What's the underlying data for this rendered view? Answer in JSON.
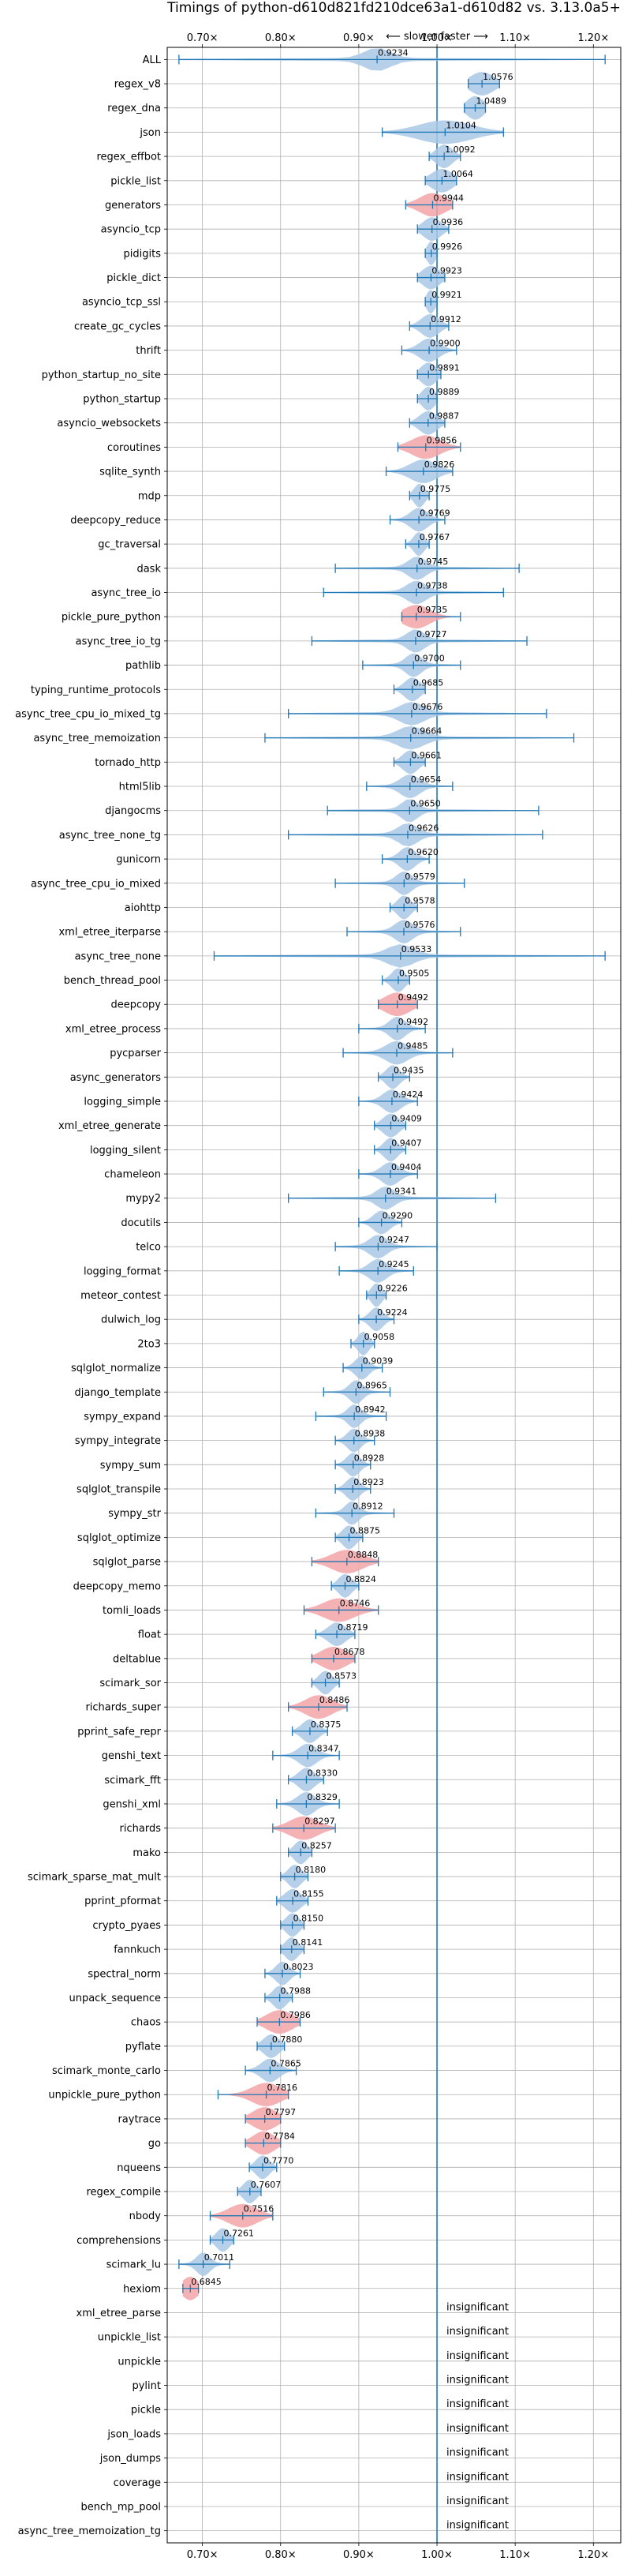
{
  "chart_data": {
    "type": "violin",
    "title": "Timings of python-d610d821fd210dce63a1-d610d82 vs. 3.13.0a5+",
    "legend_text": "⟵ slower    faster ⟶",
    "xlim": [
      0.655,
      1.235
    ],
    "xticks": [
      0.7,
      0.8,
      0.9,
      1.0,
      1.1,
      1.2
    ],
    "xtick_labels": [
      "0.70×",
      "0.80×",
      "0.90×",
      "1.00×",
      "1.10×",
      "1.20×"
    ],
    "grid": true,
    "reference_line": 1.0,
    "colors": {
      "faster_fill": "#a9c8e6",
      "slower_fill": "#f3a5a8",
      "line": "#1f77b4"
    },
    "benchmarks": [
      {
        "name": "ALL",
        "value": 0.9234,
        "label": "0.9234",
        "lo": 0.67,
        "hi": 1.215,
        "sw": 0.03,
        "slower": false
      },
      {
        "name": "regex_v8",
        "value": 1.0576,
        "label": "1.0576",
        "lo": 1.04,
        "hi": 1.08,
        "sw": 0.028,
        "slower": false
      },
      {
        "name": "regex_dna",
        "value": 1.0489,
        "label": "1.0489",
        "lo": 1.035,
        "hi": 1.062,
        "sw": 0.02,
        "slower": false
      },
      {
        "name": "json",
        "value": 1.0104,
        "label": "1.0104",
        "lo": 0.93,
        "hi": 1.085,
        "sw": 0.06,
        "slower": false
      },
      {
        "name": "regex_effbot",
        "value": 1.0092,
        "label": "1.0092",
        "lo": 0.99,
        "hi": 1.03,
        "sw": 0.018,
        "slower": false
      },
      {
        "name": "pickle_list",
        "value": 1.0064,
        "label": "1.0064",
        "lo": 0.985,
        "hi": 1.025,
        "sw": 0.025,
        "slower": false
      },
      {
        "name": "generators",
        "value": 0.9944,
        "label": "0.9944",
        "lo": 0.96,
        "hi": 1.02,
        "sw": 0.03,
        "slower": true
      },
      {
        "name": "asyncio_tcp",
        "value": 0.9936,
        "label": "0.9936",
        "lo": 0.975,
        "hi": 1.015,
        "sw": 0.02,
        "slower": false
      },
      {
        "name": "pidigits",
        "value": 0.9926,
        "label": "0.9926",
        "lo": 0.985,
        "hi": 1.0,
        "sw": 0.01,
        "slower": false
      },
      {
        "name": "pickle_dict",
        "value": 0.9923,
        "label": "0.9923",
        "lo": 0.975,
        "hi": 1.01,
        "sw": 0.02,
        "slower": false
      },
      {
        "name": "asyncio_tcp_ssl",
        "value": 0.9921,
        "label": "0.9921",
        "lo": 0.985,
        "hi": 1.0,
        "sw": 0.01,
        "slower": false
      },
      {
        "name": "create_gc_cycles",
        "value": 0.9912,
        "label": "0.9912",
        "lo": 0.965,
        "hi": 1.015,
        "sw": 0.02,
        "slower": false
      },
      {
        "name": "thrift",
        "value": 0.99,
        "label": "0.9900",
        "lo": 0.955,
        "hi": 1.025,
        "sw": 0.022,
        "slower": false
      },
      {
        "name": "python_startup_no_site",
        "value": 0.9891,
        "label": "0.9891",
        "lo": 0.975,
        "hi": 1.005,
        "sw": 0.018,
        "slower": false
      },
      {
        "name": "python_startup",
        "value": 0.9889,
        "label": "0.9889",
        "lo": 0.975,
        "hi": 1.0,
        "sw": 0.015,
        "slower": false
      },
      {
        "name": "asyncio_websockets",
        "value": 0.9887,
        "label": "0.9887",
        "lo": 0.965,
        "hi": 1.01,
        "sw": 0.02,
        "slower": false
      },
      {
        "name": "coroutines",
        "value": 0.9856,
        "label": "0.9856",
        "lo": 0.95,
        "hi": 1.03,
        "sw": 0.032,
        "slower": true
      },
      {
        "name": "sqlite_synth",
        "value": 0.9826,
        "label": "0.9826",
        "lo": 0.935,
        "hi": 1.02,
        "sw": 0.03,
        "slower": false
      },
      {
        "name": "mdp",
        "value": 0.9775,
        "label": "0.9775",
        "lo": 0.965,
        "hi": 0.99,
        "sw": 0.012,
        "slower": false
      },
      {
        "name": "deepcopy_reduce",
        "value": 0.9769,
        "label": "0.9769",
        "lo": 0.94,
        "hi": 1.01,
        "sw": 0.02,
        "slower": false
      },
      {
        "name": "gc_traversal",
        "value": 0.9767,
        "label": "0.9767",
        "lo": 0.96,
        "hi": 0.99,
        "sw": 0.012,
        "slower": false
      },
      {
        "name": "dask",
        "value": 0.9745,
        "label": "0.9745",
        "lo": 0.87,
        "hi": 1.105,
        "sw": 0.02,
        "slower": false
      },
      {
        "name": "async_tree_io",
        "value": 0.9738,
        "label": "0.9738",
        "lo": 0.855,
        "hi": 1.085,
        "sw": 0.022,
        "slower": false
      },
      {
        "name": "pickle_pure_python",
        "value": 0.9735,
        "label": "0.9735",
        "lo": 0.955,
        "hi": 1.03,
        "sw": 0.03,
        "slower": true
      },
      {
        "name": "async_tree_io_tg",
        "value": 0.9727,
        "label": "0.9727",
        "lo": 0.84,
        "hi": 1.115,
        "sw": 0.02,
        "slower": false
      },
      {
        "name": "pathlib",
        "value": 0.97,
        "label": "0.9700",
        "lo": 0.905,
        "hi": 1.03,
        "sw": 0.018,
        "slower": false
      },
      {
        "name": "typing_runtime_protocols",
        "value": 0.9685,
        "label": "0.9685",
        "lo": 0.945,
        "hi": 0.985,
        "sw": 0.018,
        "slower": false
      },
      {
        "name": "async_tree_cpu_io_mixed_tg",
        "value": 0.9676,
        "label": "0.9676",
        "lo": 0.81,
        "hi": 1.14,
        "sw": 0.028,
        "slower": false
      },
      {
        "name": "async_tree_memoization",
        "value": 0.9664,
        "label": "0.9664",
        "lo": 0.78,
        "hi": 1.175,
        "sw": 0.03,
        "slower": false
      },
      {
        "name": "tornado_http",
        "value": 0.9661,
        "label": "0.9661",
        "lo": 0.945,
        "hi": 0.985,
        "sw": 0.018,
        "slower": false
      },
      {
        "name": "html5lib",
        "value": 0.9654,
        "label": "0.9654",
        "lo": 0.91,
        "hi": 1.02,
        "sw": 0.022,
        "slower": false
      },
      {
        "name": "djangocms",
        "value": 0.965,
        "label": "0.9650",
        "lo": 0.86,
        "hi": 1.13,
        "sw": 0.018,
        "slower": false
      },
      {
        "name": "async_tree_none_tg",
        "value": 0.9626,
        "label": "0.9626",
        "lo": 0.81,
        "hi": 1.135,
        "sw": 0.022,
        "slower": false
      },
      {
        "name": "gunicorn",
        "value": 0.962,
        "label": "0.9620",
        "lo": 0.93,
        "hi": 0.99,
        "sw": 0.018,
        "slower": false
      },
      {
        "name": "async_tree_cpu_io_mixed",
        "value": 0.9579,
        "label": "0.9579",
        "lo": 0.87,
        "hi": 1.035,
        "sw": 0.018,
        "slower": false
      },
      {
        "name": "aiohttp",
        "value": 0.9578,
        "label": "0.9578",
        "lo": 0.94,
        "hi": 0.975,
        "sw": 0.015,
        "slower": false
      },
      {
        "name": "xml_etree_iterparse",
        "value": 0.9576,
        "label": "0.9576",
        "lo": 0.885,
        "hi": 1.03,
        "sw": 0.02,
        "slower": false
      },
      {
        "name": "async_tree_none",
        "value": 0.9533,
        "label": "0.9533",
        "lo": 0.715,
        "hi": 1.215,
        "sw": 0.03,
        "slower": false
      },
      {
        "name": "bench_thread_pool",
        "value": 0.9505,
        "label": "0.9505",
        "lo": 0.93,
        "hi": 0.965,
        "sw": 0.015,
        "slower": false
      },
      {
        "name": "deepcopy",
        "value": 0.9492,
        "label": "0.9492",
        "lo": 0.925,
        "hi": 0.975,
        "sw": 0.03,
        "slower": true
      },
      {
        "name": "xml_etree_process",
        "value": 0.9492,
        "label": "0.9492",
        "lo": 0.9,
        "hi": 0.985,
        "sw": 0.018,
        "slower": false
      },
      {
        "name": "pycparser",
        "value": 0.9485,
        "label": "0.9485",
        "lo": 0.88,
        "hi": 1.02,
        "sw": 0.025,
        "slower": false
      },
      {
        "name": "async_generators",
        "value": 0.9435,
        "label": "0.9435",
        "lo": 0.925,
        "hi": 0.965,
        "sw": 0.015,
        "slower": false
      },
      {
        "name": "logging_simple",
        "value": 0.9424,
        "label": "0.9424",
        "lo": 0.9,
        "hi": 0.975,
        "sw": 0.02,
        "slower": false
      },
      {
        "name": "xml_etree_generate",
        "value": 0.9409,
        "label": "0.9409",
        "lo": 0.92,
        "hi": 0.96,
        "sw": 0.018,
        "slower": false
      },
      {
        "name": "logging_silent",
        "value": 0.9407,
        "label": "0.9407",
        "lo": 0.92,
        "hi": 0.96,
        "sw": 0.015,
        "slower": false
      },
      {
        "name": "chameleon",
        "value": 0.9404,
        "label": "0.9404",
        "lo": 0.9,
        "hi": 0.975,
        "sw": 0.02,
        "slower": false
      },
      {
        "name": "mypy2",
        "value": 0.9341,
        "label": "0.9341",
        "lo": 0.81,
        "hi": 1.075,
        "sw": 0.02,
        "slower": false
      },
      {
        "name": "docutils",
        "value": 0.929,
        "label": "0.9290",
        "lo": 0.9,
        "hi": 0.955,
        "sw": 0.018,
        "slower": false
      },
      {
        "name": "telco",
        "value": 0.9247,
        "label": "0.9247",
        "lo": 0.87,
        "hi": 1.0,
        "sw": 0.02,
        "slower": false
      },
      {
        "name": "logging_format",
        "value": 0.9245,
        "label": "0.9245",
        "lo": 0.875,
        "hi": 0.97,
        "sw": 0.02,
        "slower": false
      },
      {
        "name": "meteor_contest",
        "value": 0.9226,
        "label": "0.9226",
        "lo": 0.91,
        "hi": 0.935,
        "sw": 0.012,
        "slower": false
      },
      {
        "name": "dulwich_log",
        "value": 0.9224,
        "label": "0.9224",
        "lo": 0.9,
        "hi": 0.945,
        "sw": 0.015,
        "slower": false
      },
      {
        "name": "2to3",
        "value": 0.9058,
        "label": "0.9058",
        "lo": 0.89,
        "hi": 0.92,
        "sw": 0.012,
        "slower": false
      },
      {
        "name": "sqlglot_normalize",
        "value": 0.9039,
        "label": "0.9039",
        "lo": 0.88,
        "hi": 0.93,
        "sw": 0.015,
        "slower": false
      },
      {
        "name": "django_template",
        "value": 0.8965,
        "label": "0.8965",
        "lo": 0.855,
        "hi": 0.94,
        "sw": 0.015,
        "slower": false
      },
      {
        "name": "sympy_expand",
        "value": 0.8942,
        "label": "0.8942",
        "lo": 0.845,
        "hi": 0.935,
        "sw": 0.015,
        "slower": false
      },
      {
        "name": "sympy_integrate",
        "value": 0.8938,
        "label": "0.8938",
        "lo": 0.87,
        "hi": 0.92,
        "sw": 0.015,
        "slower": false
      },
      {
        "name": "sympy_sum",
        "value": 0.8928,
        "label": "0.8928",
        "lo": 0.87,
        "hi": 0.915,
        "sw": 0.015,
        "slower": false
      },
      {
        "name": "sqlglot_transpile",
        "value": 0.8923,
        "label": "0.8923",
        "lo": 0.87,
        "hi": 0.915,
        "sw": 0.015,
        "slower": false
      },
      {
        "name": "sympy_str",
        "value": 0.8912,
        "label": "0.8912",
        "lo": 0.845,
        "hi": 0.945,
        "sw": 0.015,
        "slower": false
      },
      {
        "name": "sqlglot_optimize",
        "value": 0.8875,
        "label": "0.8875",
        "lo": 0.87,
        "hi": 0.905,
        "sw": 0.015,
        "slower": false
      },
      {
        "name": "sqlglot_parse",
        "value": 0.8848,
        "label": "0.8848",
        "lo": 0.84,
        "hi": 0.925,
        "sw": 0.035,
        "slower": true
      },
      {
        "name": "deepcopy_memo",
        "value": 0.8824,
        "label": "0.8824",
        "lo": 0.865,
        "hi": 0.9,
        "sw": 0.015,
        "slower": false
      },
      {
        "name": "tomli_loads",
        "value": 0.8746,
        "label": "0.8746",
        "lo": 0.83,
        "hi": 0.925,
        "sw": 0.035,
        "slower": true
      },
      {
        "name": "float",
        "value": 0.8719,
        "label": "0.8719",
        "lo": 0.845,
        "hi": 0.895,
        "sw": 0.02,
        "slower": false
      },
      {
        "name": "deltablue",
        "value": 0.8678,
        "label": "0.8678",
        "lo": 0.84,
        "hi": 0.895,
        "sw": 0.03,
        "slower": true
      },
      {
        "name": "scimark_sor",
        "value": 0.8573,
        "label": "0.8573",
        "lo": 0.84,
        "hi": 0.875,
        "sw": 0.015,
        "slower": false
      },
      {
        "name": "richards_super",
        "value": 0.8486,
        "label": "0.8486",
        "lo": 0.81,
        "hi": 0.885,
        "sw": 0.03,
        "slower": true
      },
      {
        "name": "pprint_safe_repr",
        "value": 0.8375,
        "label": "0.8375",
        "lo": 0.815,
        "hi": 0.86,
        "sw": 0.018,
        "slower": false
      },
      {
        "name": "genshi_text",
        "value": 0.8347,
        "label": "0.8347",
        "lo": 0.79,
        "hi": 0.875,
        "sw": 0.02,
        "slower": false
      },
      {
        "name": "scimark_fft",
        "value": 0.833,
        "label": "0.8330",
        "lo": 0.81,
        "hi": 0.855,
        "sw": 0.018,
        "slower": false
      },
      {
        "name": "genshi_xml",
        "value": 0.8329,
        "label": "0.8329",
        "lo": 0.795,
        "hi": 0.875,
        "sw": 0.02,
        "slower": false
      },
      {
        "name": "richards",
        "value": 0.8297,
        "label": "0.8297",
        "lo": 0.79,
        "hi": 0.87,
        "sw": 0.032,
        "slower": true
      },
      {
        "name": "mako",
        "value": 0.8257,
        "label": "0.8257",
        "lo": 0.81,
        "hi": 0.84,
        "sw": 0.015,
        "slower": false
      },
      {
        "name": "scimark_sparse_mat_mult",
        "value": 0.818,
        "label": "0.8180",
        "lo": 0.8,
        "hi": 0.835,
        "sw": 0.015,
        "slower": false
      },
      {
        "name": "pprint_pformat",
        "value": 0.8155,
        "label": "0.8155",
        "lo": 0.795,
        "hi": 0.835,
        "sw": 0.018,
        "slower": false
      },
      {
        "name": "crypto_pyaes",
        "value": 0.815,
        "label": "0.8150",
        "lo": 0.8,
        "hi": 0.83,
        "sw": 0.015,
        "slower": false
      },
      {
        "name": "fannkuch",
        "value": 0.8141,
        "label": "0.8141",
        "lo": 0.8,
        "hi": 0.83,
        "sw": 0.015,
        "slower": false
      },
      {
        "name": "spectral_norm",
        "value": 0.8023,
        "label": "0.8023",
        "lo": 0.78,
        "hi": 0.825,
        "sw": 0.015,
        "slower": false
      },
      {
        "name": "unpack_sequence",
        "value": 0.7988,
        "label": "0.7988",
        "lo": 0.78,
        "hi": 0.815,
        "sw": 0.015,
        "slower": false
      },
      {
        "name": "chaos",
        "value": 0.7986,
        "label": "0.7986",
        "lo": 0.77,
        "hi": 0.825,
        "sw": 0.03,
        "slower": true
      },
      {
        "name": "pyflate",
        "value": 0.788,
        "label": "0.7880",
        "lo": 0.77,
        "hi": 0.805,
        "sw": 0.018,
        "slower": false
      },
      {
        "name": "scimark_monte_carlo",
        "value": 0.7865,
        "label": "0.7865",
        "lo": 0.755,
        "hi": 0.82,
        "sw": 0.02,
        "slower": false
      },
      {
        "name": "unpickle_pure_python",
        "value": 0.7816,
        "label": "0.7816",
        "lo": 0.72,
        "hi": 0.81,
        "sw": 0.032,
        "slower": true
      },
      {
        "name": "raytrace",
        "value": 0.7797,
        "label": "0.7797",
        "lo": 0.755,
        "hi": 0.8,
        "sw": 0.028,
        "slower": true
      },
      {
        "name": "go",
        "value": 0.7784,
        "label": "0.7784",
        "lo": 0.755,
        "hi": 0.8,
        "sw": 0.025,
        "slower": true
      },
      {
        "name": "nqueens",
        "value": 0.777,
        "label": "0.7770",
        "lo": 0.76,
        "hi": 0.795,
        "sw": 0.015,
        "slower": false
      },
      {
        "name": "regex_compile",
        "value": 0.7607,
        "label": "0.7607",
        "lo": 0.745,
        "hi": 0.775,
        "sw": 0.015,
        "slower": false
      },
      {
        "name": "nbody",
        "value": 0.7516,
        "label": "0.7516",
        "lo": 0.71,
        "hi": 0.79,
        "sw": 0.032,
        "slower": true
      },
      {
        "name": "comprehensions",
        "value": 0.7261,
        "label": "0.7261",
        "lo": 0.71,
        "hi": 0.74,
        "sw": 0.015,
        "slower": false
      },
      {
        "name": "scimark_lu",
        "value": 0.7011,
        "label": "0.7011",
        "lo": 0.67,
        "hi": 0.735,
        "sw": 0.015,
        "slower": false
      },
      {
        "name": "hexiom",
        "value": 0.6845,
        "label": "0.6845",
        "lo": 0.675,
        "hi": 0.695,
        "sw": 0.02,
        "slower": true
      }
    ],
    "insignificant_label": "insignificant",
    "insignificant": [
      "xml_etree_parse",
      "unpickle_list",
      "unpickle",
      "pylint",
      "pickle",
      "json_loads",
      "json_dumps",
      "coverage",
      "bench_mp_pool",
      "async_tree_memoization_tg"
    ]
  }
}
